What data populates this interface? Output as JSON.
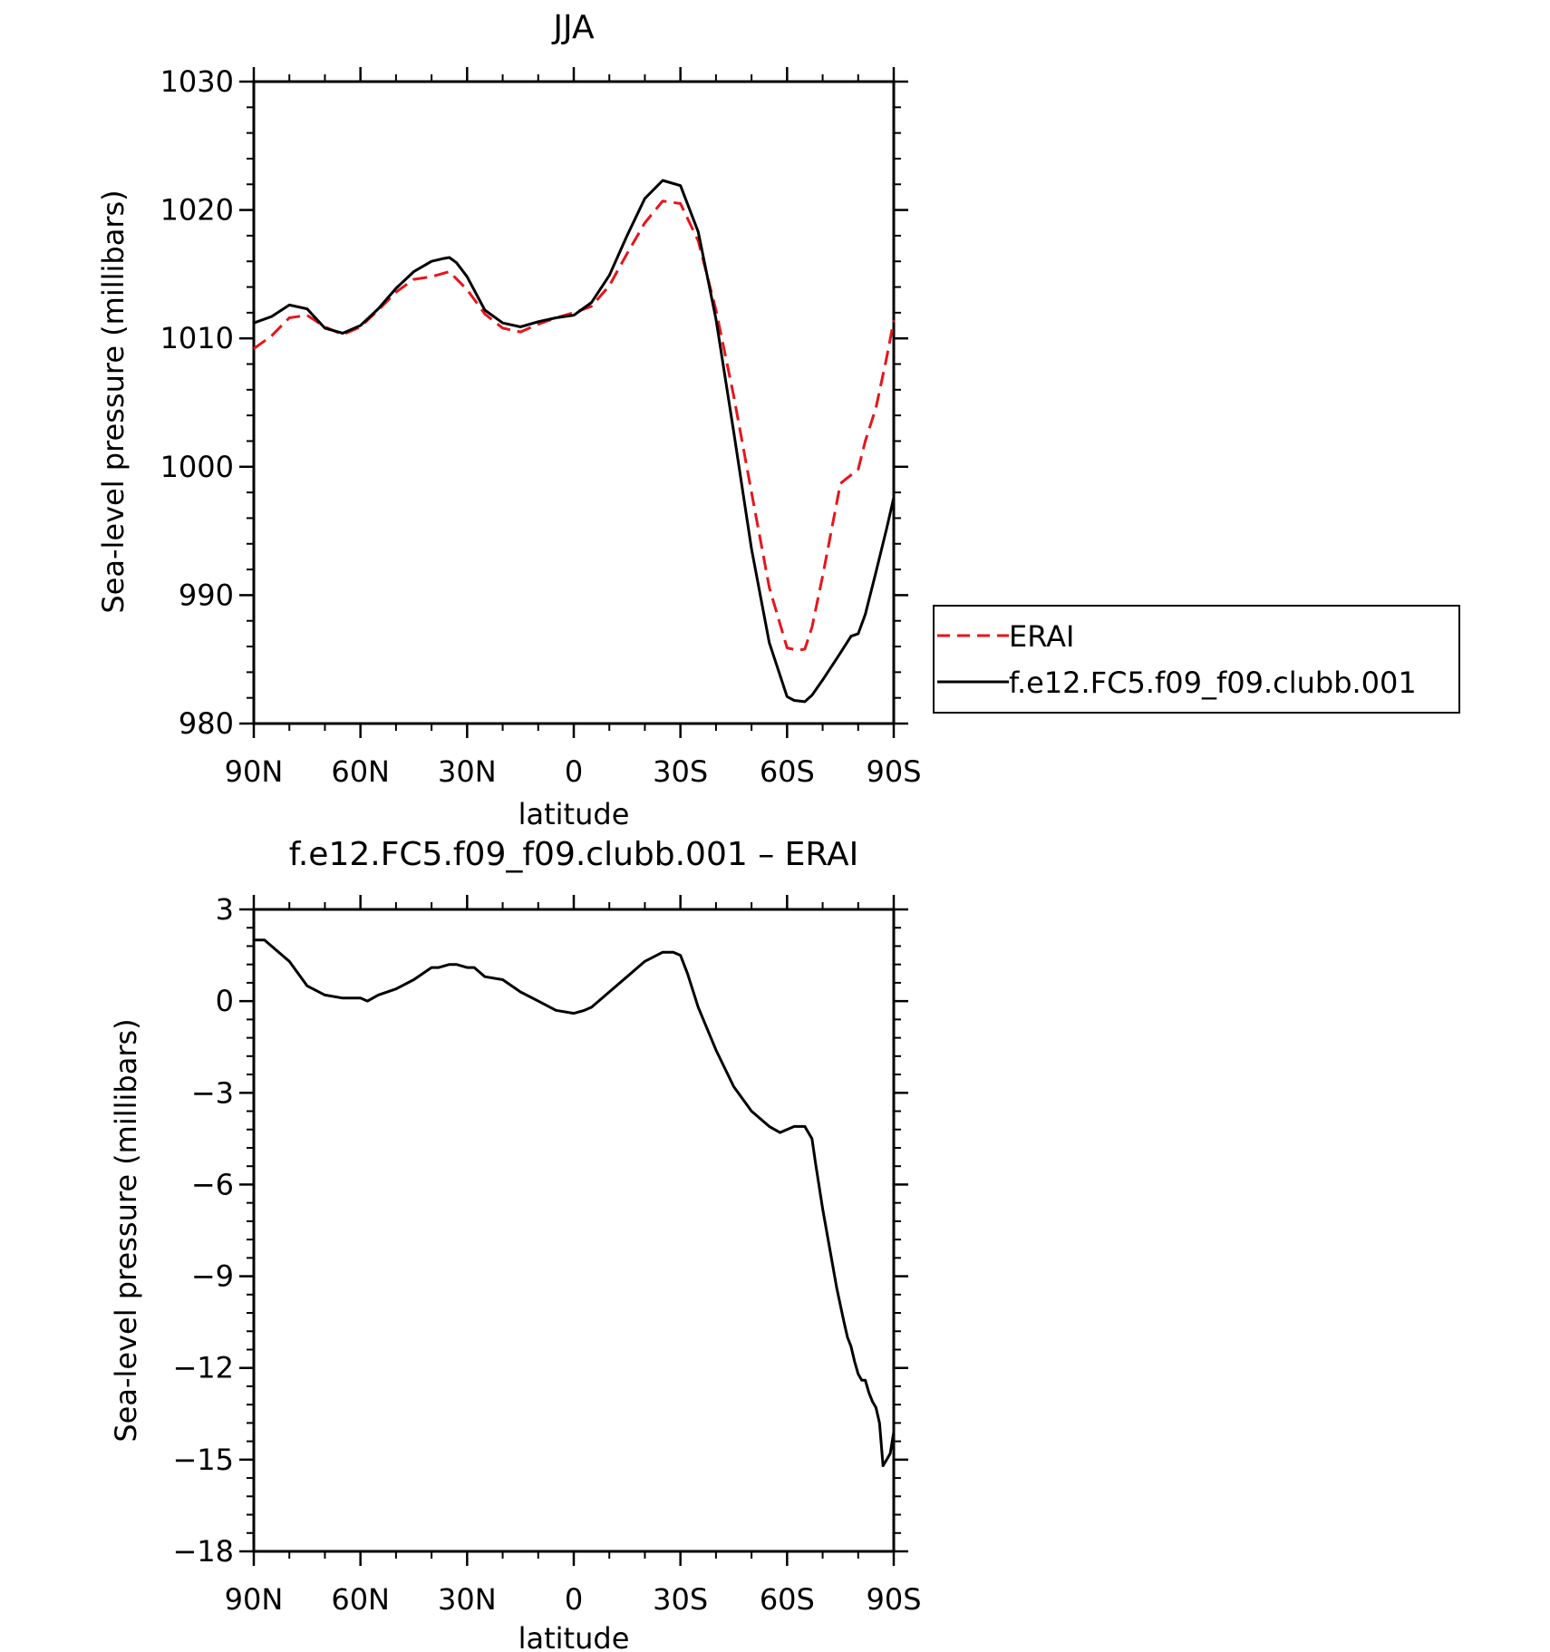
{
  "chart_data": [
    {
      "type": "line",
      "title": "JJA",
      "xlabel": "latitude",
      "ylabel": "Sea-level pressure (millibars)",
      "xlim": [
        90,
        -90
      ],
      "ylim": [
        980,
        1030
      ],
      "xticks": [
        {
          "value": 90,
          "label": "90N"
        },
        {
          "value": 60,
          "label": "60N"
        },
        {
          "value": 30,
          "label": "30N"
        },
        {
          "value": 0,
          "label": "0"
        },
        {
          "value": -30,
          "label": "30S"
        },
        {
          "value": -60,
          "label": "60S"
        },
        {
          "value": -90,
          "label": "90S"
        }
      ],
      "yticks": [
        {
          "value": 980,
          "label": "980"
        },
        {
          "value": 990,
          "label": "990"
        },
        {
          "value": 1000,
          "label": "1000"
        },
        {
          "value": 1010,
          "label": "1010"
        },
        {
          "value": 1020,
          "label": "1020"
        },
        {
          "value": 1030,
          "label": "1030"
        }
      ],
      "legend_position": "right",
      "series": [
        {
          "name": "ERAI",
          "color": "#e8141b",
          "dash": "dashed",
          "x": [
            90,
            85,
            80,
            75,
            70,
            65,
            60,
            55,
            50,
            45,
            40,
            35,
            30,
            25,
            20,
            15,
            10,
            5,
            0,
            -5,
            -10,
            -15,
            -20,
            -25,
            -30,
            -35,
            -40,
            -45,
            -50,
            -55,
            -60,
            -63,
            -65,
            -67,
            -70,
            -75,
            -80,
            -82,
            -85,
            -88,
            -90
          ],
          "y": [
            1009.2,
            1010.2,
            1011.6,
            1011.8,
            1010.9,
            1010.3,
            1010.9,
            1012.2,
            1013.6,
            1014.6,
            1014.8,
            1015.2,
            1013.8,
            1011.9,
            1010.8,
            1010.5,
            1011.1,
            1011.6,
            1012.0,
            1012.5,
            1014.1,
            1016.6,
            1019.0,
            1020.7,
            1020.5,
            1017.6,
            1012.2,
            1005.5,
            998.0,
            990.6,
            985.9,
            985.7,
            985.8,
            987.5,
            991.5,
            998.7,
            999.8,
            1002.0,
            1004.6,
            1008.5,
            1011.4
          ]
        },
        {
          "name": "f.e12.FC5.f09_f09.clubb.001",
          "color": "#000000",
          "dash": "solid",
          "x": [
            90,
            85,
            80,
            75,
            70,
            65,
            60,
            55,
            50,
            45,
            40,
            37,
            35,
            33,
            30,
            25,
            20,
            15,
            10,
            5,
            0,
            -5,
            -10,
            -15,
            -20,
            -25,
            -30,
            -35,
            -40,
            -45,
            -50,
            -55,
            -60,
            -62,
            -65,
            -67,
            -70,
            -75,
            -78,
            -80,
            -82,
            -85,
            -88,
            -90
          ],
          "y": [
            1011.2,
            1011.7,
            1012.6,
            1012.3,
            1010.8,
            1010.4,
            1011.0,
            1012.3,
            1013.9,
            1015.2,
            1016.0,
            1016.2,
            1016.3,
            1015.9,
            1014.8,
            1012.2,
            1011.2,
            1010.9,
            1011.3,
            1011.6,
            1011.8,
            1012.8,
            1014.9,
            1018.0,
            1020.9,
            1022.3,
            1021.9,
            1018.3,
            1011.5,
            1002.7,
            993.6,
            986.3,
            982.1,
            981.8,
            981.7,
            982.2,
            983.4,
            985.5,
            986.8,
            987.0,
            988.5,
            991.8,
            995.2,
            997.6
          ]
        }
      ]
    },
    {
      "type": "line",
      "title": "f.e12.FC5.f09_f09.clubb.001 – ERAI",
      "xlabel": "latitude",
      "ylabel": "Sea-level pressure (millibars)",
      "xlim": [
        90,
        -90
      ],
      "ylim": [
        -18,
        3
      ],
      "xticks": [
        {
          "value": 90,
          "label": "90N"
        },
        {
          "value": 60,
          "label": "60N"
        },
        {
          "value": 30,
          "label": "30N"
        },
        {
          "value": 0,
          "label": "0"
        },
        {
          "value": -30,
          "label": "30S"
        },
        {
          "value": -60,
          "label": "60S"
        },
        {
          "value": -90,
          "label": "90S"
        }
      ],
      "yticks": [
        {
          "value": 3,
          "label": "3"
        },
        {
          "value": 0,
          "label": "0"
        },
        {
          "value": -3,
          "label": "−3"
        },
        {
          "value": -6,
          "label": "−6"
        },
        {
          "value": -9,
          "label": "−9"
        },
        {
          "value": -12,
          "label": "−12"
        },
        {
          "value": -15,
          "label": "−15"
        },
        {
          "value": -18,
          "label": "−18"
        }
      ],
      "series": [
        {
          "color": "#000000",
          "dash": "solid",
          "x": [
            90,
            87,
            85,
            80,
            75,
            70,
            65,
            60,
            58,
            55,
            50,
            45,
            40,
            38,
            35,
            33,
            30,
            28,
            25,
            20,
            15,
            10,
            5,
            0,
            -3,
            -5,
            -10,
            -15,
            -20,
            -25,
            -28,
            -30,
            -32,
            -35,
            -40,
            -45,
            -50,
            -55,
            -58,
            -60,
            -62,
            -65,
            -67,
            -68,
            -70,
            -72,
            -74,
            -76,
            -77,
            -78,
            -79,
            -80,
            -81,
            -82,
            -83,
            -84,
            -85,
            -86,
            -87,
            -88,
            -89,
            -90
          ],
          "y": [
            2.0,
            2.0,
            1.8,
            1.3,
            0.5,
            0.2,
            0.1,
            0.1,
            0.0,
            0.2,
            0.4,
            0.7,
            1.1,
            1.1,
            1.2,
            1.2,
            1.1,
            1.1,
            0.8,
            0.7,
            0.3,
            0.0,
            -0.3,
            -0.4,
            -0.3,
            -0.2,
            0.3,
            0.8,
            1.3,
            1.6,
            1.6,
            1.5,
            0.9,
            -0.2,
            -1.6,
            -2.8,
            -3.6,
            -4.1,
            -4.3,
            -4.2,
            -4.1,
            -4.1,
            -4.5,
            -5.3,
            -6.8,
            -8.1,
            -9.4,
            -10.5,
            -11.0,
            -11.3,
            -11.8,
            -12.2,
            -12.4,
            -12.4,
            -12.8,
            -13.1,
            -13.3,
            -13.8,
            -15.2,
            -15.0,
            -14.8,
            -14.1
          ]
        }
      ]
    }
  ]
}
